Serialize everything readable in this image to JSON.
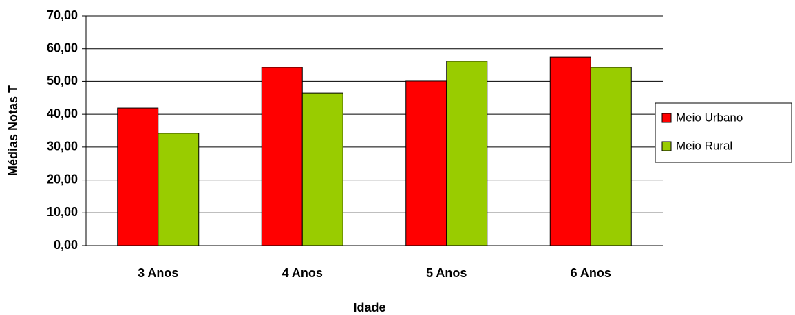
{
  "chart_data": {
    "type": "bar",
    "xlabel": "Idade",
    "ylabel": "Médias Notas T",
    "categories": [
      "3 Anos",
      "4 Anos",
      "5 Anos",
      "6 Anos"
    ],
    "series": [
      {
        "name": "Meio Urbano",
        "color": "#ff0000",
        "values": [
          41.9,
          54.3,
          50.1,
          57.4
        ]
      },
      {
        "name": "Meio Rural",
        "color": "#99cc00",
        "values": [
          34.2,
          46.5,
          56.2,
          54.3
        ]
      }
    ],
    "ylim": [
      0,
      70
    ],
    "yticks": [
      {
        "value": 0,
        "label": "0,00"
      },
      {
        "value": 10,
        "label": "10,00"
      },
      {
        "value": 20,
        "label": "20,00"
      },
      {
        "value": 30,
        "label": "30,00"
      },
      {
        "value": 40,
        "label": "40,00"
      },
      {
        "value": 50,
        "label": "50,00"
      },
      {
        "value": 60,
        "label": "60,00"
      },
      {
        "value": 70,
        "label": "70,00"
      }
    ],
    "grid": true,
    "legend": "right"
  }
}
